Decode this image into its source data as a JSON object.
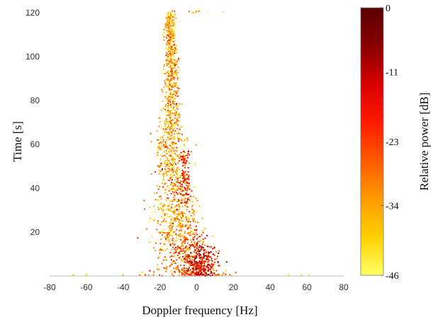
{
  "chart_data": {
    "type": "scatter",
    "xlabel": "Doppler frequency [Hz]",
    "ylabel": "Time [s]",
    "colorbar_label": "Relative power [dB]",
    "xlim": [
      -80,
      80
    ],
    "ylim": [
      0,
      122
    ],
    "x_ticks": [
      -80,
      -60,
      -40,
      -20,
      0,
      20,
      40,
      60,
      80
    ],
    "x_tick_labels": [
      "-80",
      "-60",
      "-40",
      "-20",
      "0",
      "20",
      "40",
      "60",
      "80"
    ],
    "y_ticks": [
      20,
      40,
      60,
      80,
      100,
      120
    ],
    "y_tick_labels": [
      "20",
      "40",
      "60",
      "80",
      "100",
      "120"
    ],
    "colorbar_range_db": [
      -46,
      0
    ],
    "colorbar_ticks": [
      0,
      -11,
      -23,
      -34,
      -46
    ],
    "colorbar_tick_labels": [
      "0",
      "-11",
      "-23",
      "-34",
      "-46"
    ],
    "colormap": [
      "#ffff66",
      "#ffd000",
      "#ff9a00",
      "#ff5a00",
      "#ff1a00",
      "#d80000",
      "#8a0000",
      "#5a0000"
    ],
    "grid": false,
    "ridge": [
      {
        "t": 120,
        "f": -14.5,
        "w": 1.5
      },
      {
        "t": 110,
        "f": -14.5,
        "w": 1.6
      },
      {
        "t": 100,
        "f": -14.0,
        "w": 1.7
      },
      {
        "t": 90,
        "f": -13.5,
        "w": 1.9
      },
      {
        "t": 80,
        "f": -13.5,
        "w": 2.2
      },
      {
        "t": 70,
        "f": -14.0,
        "w": 2.8
      },
      {
        "t": 60,
        "f": -14.0,
        "w": 3.8
      },
      {
        "t": 50,
        "f": -13.0,
        "w": 4.5
      },
      {
        "t": 40,
        "f": -12.0,
        "w": 5.0
      },
      {
        "t": 30,
        "f": -11.0,
        "w": 5.8
      },
      {
        "t": 20,
        "f": -10.0,
        "w": 6.5
      },
      {
        "t": 10,
        "f": -7.0,
        "w": 7.5
      },
      {
        "t": 5,
        "f": -4.0,
        "w": 8.5
      },
      {
        "t": 0,
        "f": -2.0,
        "w": 10.0
      }
    ],
    "secondary_ridge": [
      {
        "t": 55,
        "f": -7.0,
        "w": 1.2
      },
      {
        "t": 45,
        "f": -6.5,
        "w": 1.5
      },
      {
        "t": 35,
        "f": -6.0,
        "w": 1.8
      }
    ],
    "hot_cluster": {
      "f_center": 2,
      "t_center": 6,
      "f_spread": 4,
      "t_spread": 5
    },
    "outliers": [
      {
        "f": -67,
        "t": 0.4,
        "db": -38
      },
      {
        "f": -60,
        "t": 0.5,
        "db": -40
      },
      {
        "f": -40,
        "t": 0.3,
        "db": -36
      },
      {
        "f": -31,
        "t": 0.4,
        "db": -30
      },
      {
        "f": -28,
        "t": 0.6,
        "db": -28
      },
      {
        "f": -26,
        "t": 0.3,
        "db": -33
      },
      {
        "f": 10,
        "t": 0.5,
        "db": -27
      },
      {
        "f": 14,
        "t": 0.4,
        "db": -30
      },
      {
        "f": 18,
        "t": 0.6,
        "db": -32
      },
      {
        "f": 50,
        "t": 0.4,
        "db": -40
      },
      {
        "f": 57,
        "t": 0.5,
        "db": -43
      },
      {
        "f": 61,
        "t": 0.5,
        "db": -44
      }
    ]
  }
}
